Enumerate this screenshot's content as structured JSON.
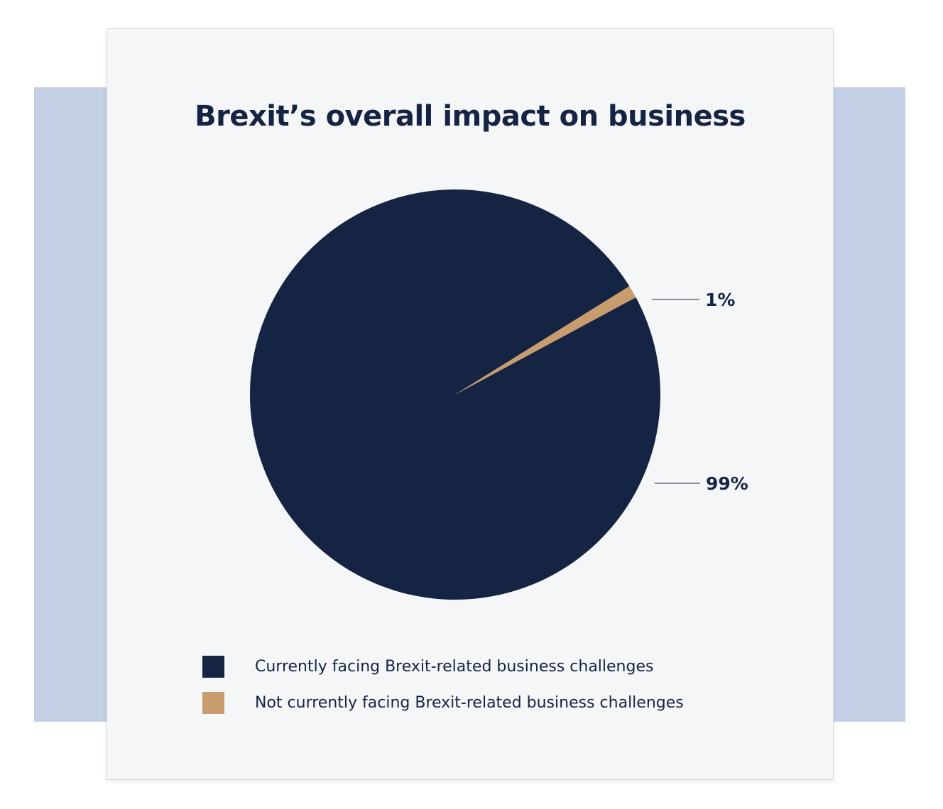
{
  "chart_data": {
    "type": "pie",
    "title": "Brexit’s overall impact on business",
    "categories": [
      "Currently facing Brexit-related business challenges",
      "Not currently facing Brexit-related business challenges"
    ],
    "values": [
      99,
      1
    ],
    "data_labels": [
      "99%",
      "1%"
    ],
    "colors": [
      "#162443",
      "#c89c6c"
    ],
    "legend_position": "bottom"
  }
}
